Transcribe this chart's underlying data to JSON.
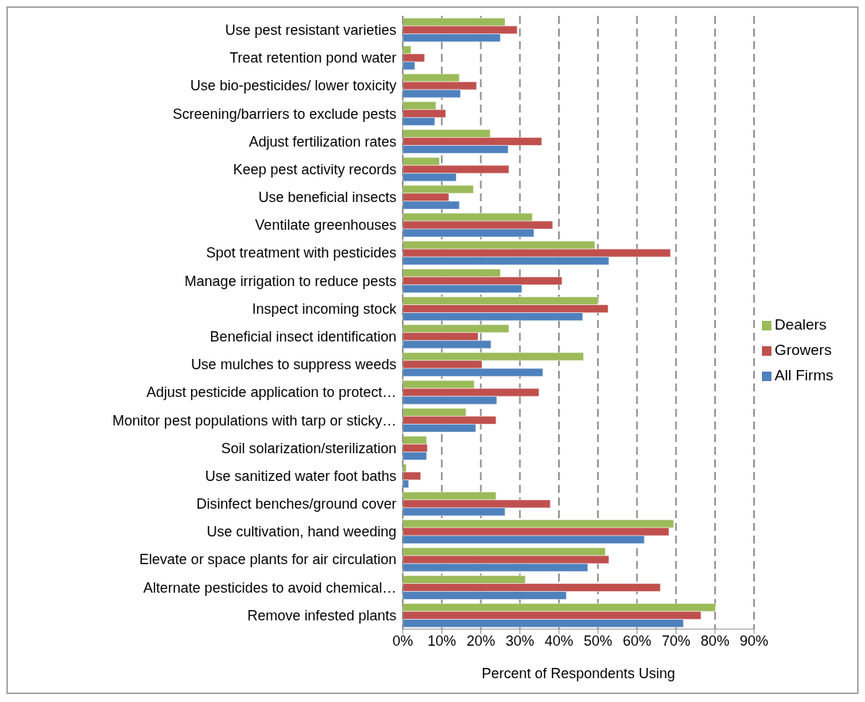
{
  "chart_data": {
    "type": "bar",
    "orientation": "horizontal",
    "xlabel": "Percent of Respondents Using",
    "categories": [
      "Use pest resistant varieties",
      "Treat retention pond water",
      "Use bio-pesticides/ lower toxicity",
      "Screening/barriers to exclude pests",
      "Adjust fertilization rates",
      "Keep pest activity records",
      "Use beneficial insects",
      "Ventilate greenhouses",
      "Spot treatment with pesticides",
      "Manage irrigation to reduce pests",
      "Inspect incoming stock",
      "Beneficial insect identification",
      "Use mulches to suppress weeds",
      "Adjust pesticide application to protect…",
      "Monitor pest populations with tarp or sticky…",
      "Soil solarization/sterilization",
      "Use sanitized water foot baths",
      "Disinfect benches/ground cover",
      "Use cultivation, hand weeding",
      "Elevate or space plants for air circulation",
      "Alternate pesticides to avoid chemical…",
      "Remove infested plants"
    ],
    "series": [
      {
        "name": "Dealers",
        "color": "#9bbb59",
        "values": [
          26.2,
          2.1,
          14.5,
          8.5,
          22.4,
          9.4,
          18.1,
          33.2,
          49.2,
          25.0,
          50.0,
          27.2,
          46.3,
          18.3,
          16.2,
          6.1,
          0.9,
          23.9,
          69.4,
          51.9,
          31.4,
          80.1
        ]
      },
      {
        "name": "Growers",
        "color": "#c0504d",
        "values": [
          29.3,
          5.6,
          18.9,
          11.0,
          35.6,
          27.2,
          11.8,
          38.4,
          68.6,
          40.8,
          52.6,
          19.3,
          20.3,
          34.9,
          23.9,
          6.3,
          4.6,
          37.8,
          68.2,
          52.8,
          66.0,
          76.4
        ]
      },
      {
        "name": "All Firms",
        "color": "#4f81bd",
        "values": [
          25.0,
          3.1,
          14.8,
          8.2,
          27.0,
          13.7,
          14.5,
          33.6,
          52.8,
          30.5,
          46.1,
          22.6,
          35.9,
          24.1,
          18.7,
          6.1,
          1.5,
          26.2,
          61.9,
          47.4,
          41.9,
          71.9
        ]
      }
    ],
    "xlim": [
      0,
      90
    ],
    "xticks": [
      {
        "value": 0,
        "label": "0%"
      },
      {
        "value": 10,
        "label": "10%"
      },
      {
        "value": 20,
        "label": "20%"
      },
      {
        "value": 30,
        "label": "30%"
      },
      {
        "value": 40,
        "label": "40%"
      },
      {
        "value": 50,
        "label": "50%"
      },
      {
        "value": 60,
        "label": "60%"
      },
      {
        "value": 70,
        "label": "70%"
      },
      {
        "value": 80,
        "label": "80%"
      },
      {
        "value": 90,
        "label": "90%"
      }
    ],
    "grid": "x",
    "legend": "right"
  }
}
